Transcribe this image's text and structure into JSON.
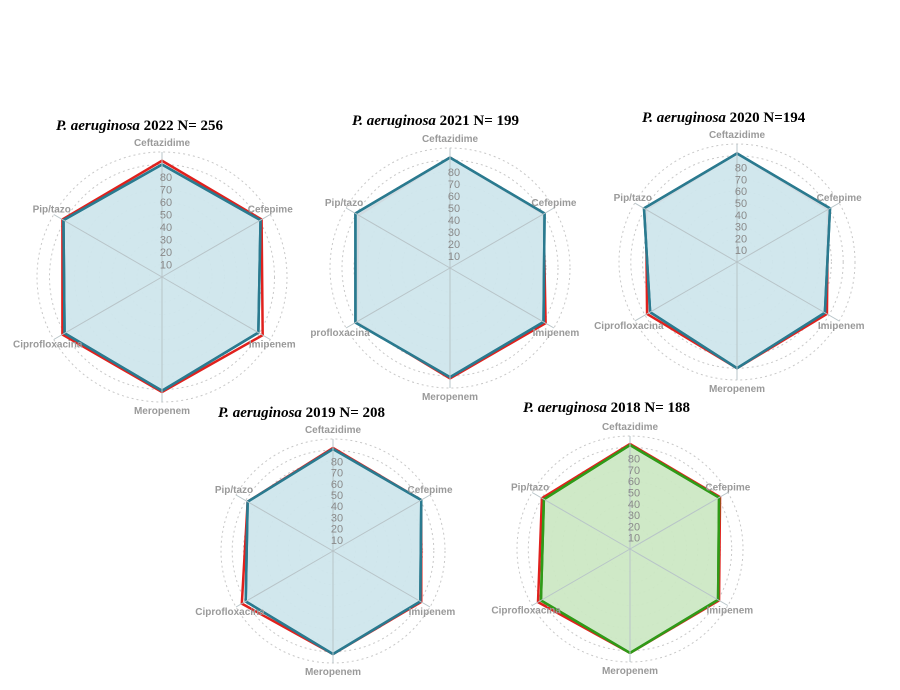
{
  "colors": {
    "fill_blue": "#cfe6ec",
    "fill_green": "#cce8c4",
    "line_red": "#e0211d",
    "line_teal": "#2a7a8f",
    "line_green": "#2f9a18",
    "grid": "#c8c8c8",
    "spoke": "#b8c4c8"
  },
  "chart_data": [
    {
      "type": "radar",
      "title_org": "P. aeruginosa",
      "title_rest": "2022 N= 256",
      "axes": [
        "Ceftazidime",
        "Cefepime",
        "Imipenem",
        "Meropenem",
        "Ciprofloxacina",
        "Pip/tazo"
      ],
      "rlim": [
        0,
        100
      ],
      "ticks": [
        "10",
        "20",
        "30",
        "40",
        "50",
        "60",
        "70",
        "80"
      ],
      "grid": true,
      "series": [
        {
          "values": [
            93,
            92,
            93,
            92,
            92,
            92
          ],
          "color": "#e0211d"
        },
        {
          "values": [
            90,
            91,
            89,
            91,
            90,
            91
          ],
          "color": "#2a7a8f",
          "fill": "#cfe6ec"
        }
      ]
    },
    {
      "type": "radar",
      "title_org": "P. aeruginosa",
      "title_rest": "2021 N= 199",
      "axes": [
        "Ceftazidime",
        "Cefepime",
        "Imipenem",
        "Meropenem",
        "proflo",
        "Pip/tazo"
      ],
      "axis_label_overrides": {
        "4": "profloxacina"
      },
      "rlim": [
        0,
        100
      ],
      "ticks": [
        "10",
        "20",
        "30",
        "40",
        "50",
        "60",
        "70",
        "80"
      ],
      "grid": true,
      "series": [
        {
          "values": [
            92,
            90,
            92,
            92,
            90,
            88
          ],
          "color": "#e0211d"
        },
        {
          "values": [
            92,
            91,
            90,
            91,
            91,
            91
          ],
          "color": "#2a7a8f",
          "fill": "#cfe6ec"
        }
      ]
    },
    {
      "type": "radar",
      "title_org": "P. aeruginosa",
      "title_rest": "2020 N=194",
      "axes": [
        "Ceftazidime",
        "Cefepime",
        "Imipenem",
        "Meropenem",
        "Ciprofloxacina",
        "Pip/tazo"
      ],
      "rlim": [
        0,
        100
      ],
      "ticks": [
        "10",
        "20",
        "30",
        "40",
        "50",
        "60",
        "70",
        "80"
      ],
      "grid": true,
      "series": [
        {
          "values": [
            92,
            89,
            88,
            90,
            88,
            89
          ],
          "color": "#e0211d"
        },
        {
          "values": [
            92,
            91,
            86,
            90,
            85,
            91
          ],
          "color": "#2a7a8f",
          "fill": "#cfe6ec"
        }
      ]
    },
    {
      "type": "radar",
      "title_org": "P. aeruginosa",
      "title_rest": "2019 N= 208",
      "axes": [
        "Ceftazidime",
        "Cefepime",
        "Imipenem",
        "Meropenem",
        "Ciprofloxacina",
        "Pip/tazo"
      ],
      "rlim": [
        0,
        100
      ],
      "ticks": [
        "10",
        "20",
        "30",
        "40",
        "50",
        "60",
        "70",
        "80"
      ],
      "grid": true,
      "series": [
        {
          "values": [
            92,
            91,
            91,
            92,
            94,
            88
          ],
          "color": "#e0211d"
        },
        {
          "values": [
            91,
            91,
            90,
            92,
            90,
            88
          ],
          "color": "#2a7a8f",
          "fill": "#cfe6ec"
        }
      ]
    },
    {
      "type": "radar",
      "title_org": "P. aeruginosa",
      "title_rest": "2018 N= 188",
      "axes": [
        "Ceftazidime",
        "Cefepime",
        "Imipenem",
        "Meropenem",
        "Ciprofloxacina",
        "Pip/tazo"
      ],
      "rlim": [
        0,
        100
      ],
      "ticks": [
        "10",
        "20",
        "30",
        "40",
        "50",
        "60",
        "70",
        "80"
      ],
      "grid": true,
      "series": [
        {
          "values": [
            93,
            92,
            91,
            92,
            94,
            90
          ],
          "color": "#e0211d"
        },
        {
          "values": [
            92,
            91,
            90,
            92,
            91,
            88
          ],
          "color": "#2f9a18",
          "fill": "#cce8c4"
        }
      ]
    }
  ]
}
